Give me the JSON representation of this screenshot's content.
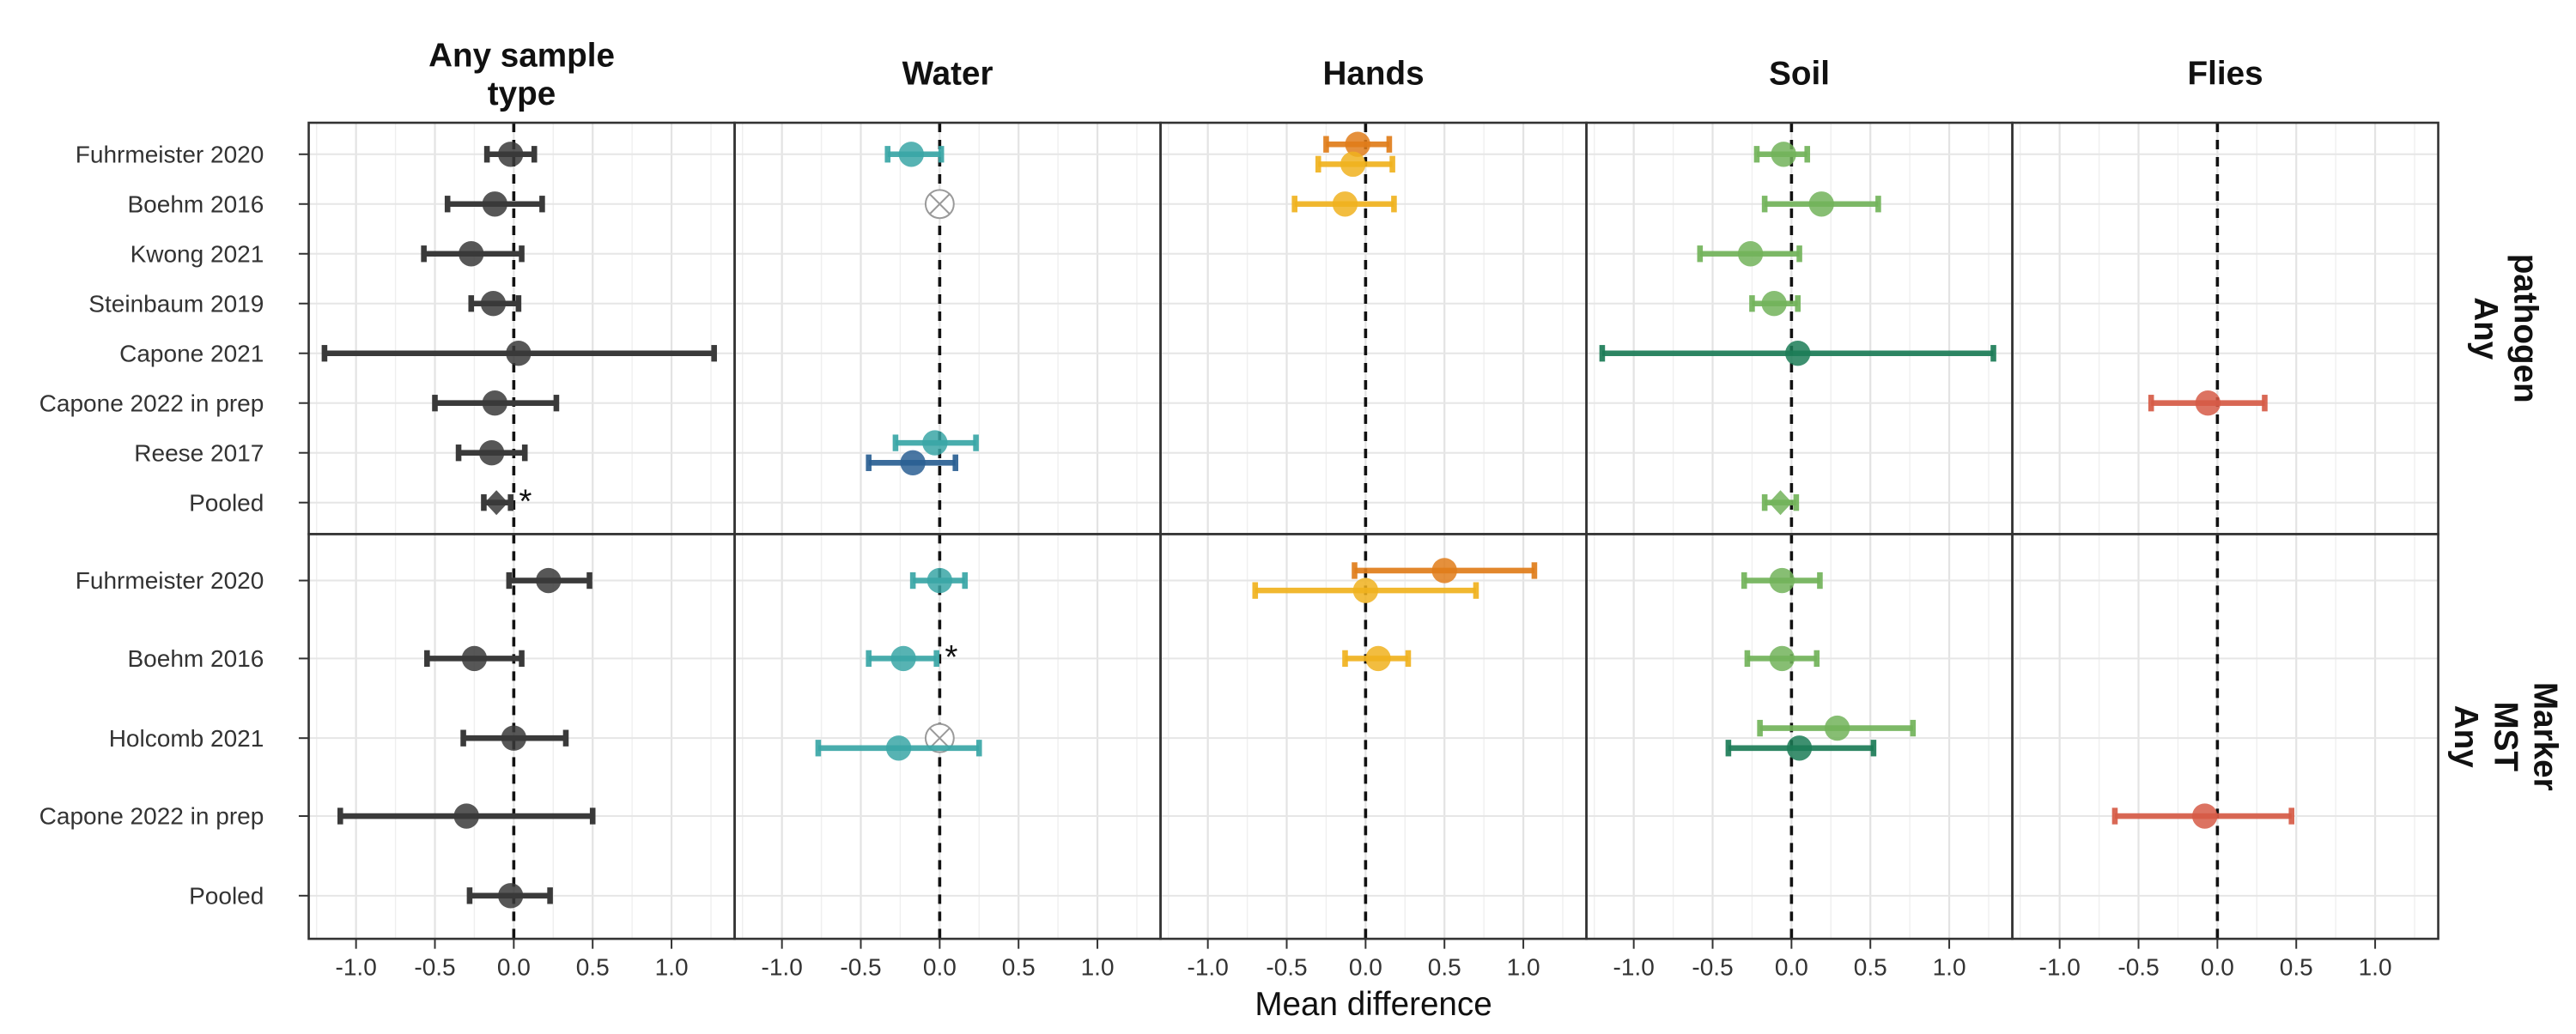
{
  "chart_data": {
    "type": "forest",
    "xlabel": "Mean difference",
    "xlim": [
      -1.3,
      1.4
    ],
    "xticks": [
      -1.0,
      -0.5,
      0.0,
      0.5,
      1.0
    ],
    "x_tick_labels": [
      "-1.0",
      "-0.5",
      "0.0",
      "0.5",
      "1.0"
    ],
    "grid": true,
    "reference_line": 0,
    "columns": [
      "Any sample type",
      "Water",
      "Hands",
      "Soil",
      "Flies"
    ],
    "rows": [
      {
        "label": "Any pathogen",
        "studies": [
          "Fuhrmeister 2020",
          "Boehm 2016",
          "Kwong 2021",
          "Steinbaum 2019",
          "Capone 2021",
          "Capone 2022 in prep",
          "Reese 2017",
          "Pooled"
        ]
      },
      {
        "label": "Any MST Marker",
        "studies": [
          "Fuhrmeister 2020",
          "Boehm 2016",
          "Holcomb 2021",
          "Capone 2022 in prep",
          "Pooled"
        ]
      }
    ],
    "colors": {
      "any": "#3a3a3a",
      "water": "#3aa6a6",
      "water_dark": "#2a5f93",
      "hands": "#f0b21e",
      "hands_dark": "#e07d1a",
      "soil": "#72b35a",
      "soil_dark": "#1c7c57",
      "flies": "#d65b47"
    },
    "estimates": [
      {
        "row": 0,
        "col": 0,
        "study": 0,
        "est": -0.02,
        "lo": -0.17,
        "hi": 0.13,
        "color": "any"
      },
      {
        "row": 0,
        "col": 0,
        "study": 1,
        "est": -0.12,
        "lo": -0.42,
        "hi": 0.18,
        "color": "any"
      },
      {
        "row": 0,
        "col": 0,
        "study": 2,
        "est": -0.27,
        "lo": -0.57,
        "hi": 0.05,
        "color": "any"
      },
      {
        "row": 0,
        "col": 0,
        "study": 3,
        "est": -0.13,
        "lo": -0.27,
        "hi": 0.03,
        "color": "any"
      },
      {
        "row": 0,
        "col": 0,
        "study": 4,
        "est": 0.03,
        "lo": -1.2,
        "hi": 1.27,
        "color": "any"
      },
      {
        "row": 0,
        "col": 0,
        "study": 5,
        "est": -0.12,
        "lo": -0.5,
        "hi": 0.27,
        "color": "any"
      },
      {
        "row": 0,
        "col": 0,
        "study": 6,
        "est": -0.14,
        "lo": -0.35,
        "hi": 0.07,
        "color": "any"
      },
      {
        "row": 0,
        "col": 0,
        "study": 7,
        "est": -0.11,
        "lo": -0.19,
        "hi": -0.02,
        "color": "any",
        "pooled": true,
        "sig": true
      },
      {
        "row": 0,
        "col": 1,
        "study": 0,
        "est": -0.18,
        "lo": -0.33,
        "hi": 0.01,
        "color": "water"
      },
      {
        "row": 0,
        "col": 1,
        "study": 1,
        "na": true
      },
      {
        "row": 0,
        "col": 1,
        "study": 6,
        "est": -0.03,
        "lo": -0.28,
        "hi": 0.23,
        "color": "water",
        "offset": -1
      },
      {
        "row": 0,
        "col": 1,
        "study": 6,
        "est": -0.17,
        "lo": -0.45,
        "hi": 0.1,
        "color": "water_dark",
        "offset": 1
      },
      {
        "row": 0,
        "col": 2,
        "study": 0,
        "est": -0.05,
        "lo": -0.25,
        "hi": 0.15,
        "color": "hands_dark",
        "offset": -1
      },
      {
        "row": 0,
        "col": 2,
        "study": 0,
        "est": -0.08,
        "lo": -0.3,
        "hi": 0.17,
        "color": "hands",
        "offset": 1
      },
      {
        "row": 0,
        "col": 2,
        "study": 1,
        "est": -0.13,
        "lo": -0.45,
        "hi": 0.18,
        "color": "hands"
      },
      {
        "row": 0,
        "col": 3,
        "study": 0,
        "est": -0.05,
        "lo": -0.22,
        "hi": 0.1,
        "color": "soil"
      },
      {
        "row": 0,
        "col": 3,
        "study": 1,
        "est": 0.19,
        "lo": -0.17,
        "hi": 0.55,
        "color": "soil"
      },
      {
        "row": 0,
        "col": 3,
        "study": 2,
        "est": -0.26,
        "lo": -0.58,
        "hi": 0.05,
        "color": "soil"
      },
      {
        "row": 0,
        "col": 3,
        "study": 3,
        "est": -0.11,
        "lo": -0.25,
        "hi": 0.04,
        "color": "soil"
      },
      {
        "row": 0,
        "col": 3,
        "study": 4,
        "est": 0.04,
        "lo": -1.2,
        "hi": 1.28,
        "color": "soil_dark"
      },
      {
        "row": 0,
        "col": 3,
        "study": 7,
        "est": -0.07,
        "lo": -0.17,
        "hi": 0.03,
        "color": "soil",
        "pooled": true
      },
      {
        "row": 0,
        "col": 4,
        "study": 5,
        "est": -0.06,
        "lo": -0.42,
        "hi": 0.3,
        "color": "flies"
      },
      {
        "row": 1,
        "col": 0,
        "study": 0,
        "est": 0.22,
        "lo": -0.03,
        "hi": 0.48,
        "color": "any"
      },
      {
        "row": 1,
        "col": 0,
        "study": 1,
        "est": -0.25,
        "lo": -0.55,
        "hi": 0.05,
        "color": "any"
      },
      {
        "row": 1,
        "col": 0,
        "study": 2,
        "est": 0.0,
        "lo": -0.32,
        "hi": 0.33,
        "color": "any"
      },
      {
        "row": 1,
        "col": 0,
        "study": 3,
        "est": -0.3,
        "lo": -1.1,
        "hi": 0.5,
        "color": "any"
      },
      {
        "row": 1,
        "col": 0,
        "study": 4,
        "est": -0.02,
        "lo": -0.28,
        "hi": 0.23,
        "color": "any",
        "pooled": true
      },
      {
        "row": 1,
        "col": 1,
        "study": 0,
        "est": 0.0,
        "lo": -0.17,
        "hi": 0.16,
        "color": "water"
      },
      {
        "row": 1,
        "col": 1,
        "study": 1,
        "est": -0.23,
        "lo": -0.45,
        "hi": -0.02,
        "color": "water",
        "sig": true
      },
      {
        "row": 1,
        "col": 1,
        "study": 2,
        "na": true
      },
      {
        "row": 1,
        "col": 1,
        "study": 2,
        "est": -0.26,
        "lo": -0.77,
        "hi": 0.25,
        "color": "water",
        "offset": 1
      },
      {
        "row": 1,
        "col": 2,
        "study": 0,
        "est": 0.5,
        "lo": -0.07,
        "hi": 1.07,
        "color": "hands_dark",
        "offset": -1
      },
      {
        "row": 1,
        "col": 2,
        "study": 0,
        "est": 0.0,
        "lo": -0.7,
        "hi": 0.7,
        "color": "hands",
        "offset": 1
      },
      {
        "row": 1,
        "col": 2,
        "study": 1,
        "est": 0.08,
        "lo": -0.13,
        "hi": 0.27,
        "color": "hands"
      },
      {
        "row": 1,
        "col": 3,
        "study": 0,
        "est": -0.06,
        "lo": -0.3,
        "hi": 0.18,
        "color": "soil"
      },
      {
        "row": 1,
        "col": 3,
        "study": 1,
        "est": -0.06,
        "lo": -0.28,
        "hi": 0.16,
        "color": "soil"
      },
      {
        "row": 1,
        "col": 3,
        "study": 2,
        "est": 0.29,
        "lo": -0.2,
        "hi": 0.77,
        "color": "soil",
        "offset": -1
      },
      {
        "row": 1,
        "col": 3,
        "study": 2,
        "est": 0.05,
        "lo": -0.4,
        "hi": 0.52,
        "color": "soil_dark",
        "offset": 1
      },
      {
        "row": 1,
        "col": 4,
        "study": 3,
        "est": -0.08,
        "lo": -0.65,
        "hi": 0.47,
        "color": "flies"
      }
    ]
  }
}
